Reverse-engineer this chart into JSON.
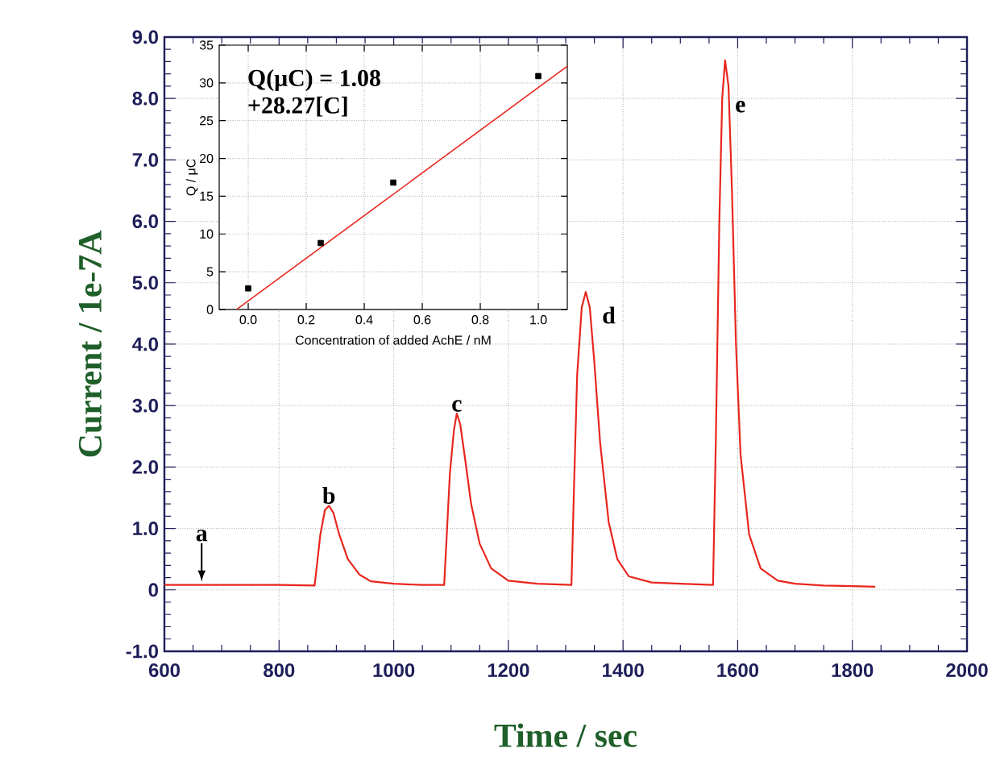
{
  "chart_data": [
    {
      "type": "line",
      "xlabel": "Time / sec",
      "ylabel": "Current / 1e-7A",
      "color": "#e8261e",
      "x": [
        600,
        700,
        800,
        862,
        866,
        872,
        880,
        887,
        895,
        905,
        920,
        940,
        960,
        1000,
        1050,
        1088,
        1092,
        1098,
        1105,
        1110,
        1116,
        1125,
        1135,
        1150,
        1170,
        1200,
        1250,
        1310,
        1314,
        1320,
        1328,
        1335,
        1342,
        1350,
        1360,
        1375,
        1390,
        1410,
        1450,
        1500,
        1557,
        1562,
        1568,
        1573,
        1578,
        1584,
        1590,
        1597,
        1605,
        1620,
        1640,
        1670,
        1700,
        1750,
        1800,
        1840
      ],
      "values": [
        0.08,
        0.08,
        0.08,
        0.07,
        0.4,
        0.9,
        1.3,
        1.37,
        1.25,
        0.9,
        0.5,
        0.25,
        0.14,
        0.1,
        0.08,
        0.08,
        0.8,
        1.9,
        2.6,
        2.87,
        2.7,
        2.1,
        1.4,
        0.75,
        0.35,
        0.15,
        0.1,
        0.08,
        1.5,
        3.5,
        4.6,
        4.85,
        4.6,
        3.7,
        2.4,
        1.1,
        0.5,
        0.22,
        0.12,
        0.1,
        0.08,
        2.5,
        6.0,
        8.0,
        8.62,
        8.2,
        6.5,
        4.0,
        2.2,
        0.9,
        0.35,
        0.15,
        0.1,
        0.07,
        0.06,
        0.05
      ],
      "xlim": [
        600,
        2000
      ],
      "ylim": [
        -1.0,
        9.0
      ],
      "xticks": [
        600,
        800,
        1000,
        1200,
        1400,
        1600,
        1800,
        2000
      ],
      "yticks": [
        {
          "value": -1.0,
          "label": "-1.0"
        },
        0,
        {
          "value": 1.0,
          "label": "1.0"
        },
        {
          "value": 2.0,
          "label": "2.0"
        },
        {
          "value": 3.0,
          "label": "3.0"
        },
        {
          "value": 4.0,
          "label": "4.0"
        },
        {
          "value": 5.0,
          "label": "5.0"
        },
        {
          "value": 6.0,
          "label": "6.0"
        },
        {
          "value": 7.0,
          "label": "7.0"
        },
        {
          "value": 8.0,
          "label": "8.0"
        },
        {
          "value": 9.0,
          "label": "9.0"
        }
      ],
      "grid": true,
      "annotations": [
        {
          "text": "a",
          "x": 665,
          "y": 0.08
        },
        {
          "text": "b",
          "x": 887,
          "y": 1.37
        },
        {
          "text": "c",
          "x": 1110,
          "y": 2.87
        },
        {
          "text": "d",
          "x": 1335,
          "y": 4.85
        },
        {
          "text": "e",
          "x": 1578,
          "y": 8.62
        }
      ]
    },
    {
      "type": "scatter",
      "xlabel": "Concentration of added AchE / nM",
      "ylabel": "Q / μC",
      "series": [
        {
          "type": "scatter",
          "marker": "square",
          "color": "#000000",
          "x": [
            0,
            0.25,
            0.5,
            1.0
          ],
          "values": [
            2.8,
            8.8,
            16.8,
            30.9
          ]
        },
        {
          "type": "line",
          "marker": "none",
          "color": "#e8261e",
          "x": [
            -0.04,
            1.1
          ],
          "values": [
            0,
            32.2
          ]
        }
      ],
      "xlim": [
        -0.1,
        1.1
      ],
      "ylim": [
        0,
        35
      ],
      "xticks": [
        {
          "value": 0,
          "label": "0.0"
        },
        0.2,
        0.4,
        0.6,
        0.8,
        {
          "value": 1.0,
          "label": "1.0"
        }
      ],
      "yticks": [
        0,
        5,
        10,
        15,
        20,
        25,
        30,
        35
      ],
      "grid": true,
      "annotations": [
        "Q(μC) = 1.08",
        "+28.27[C]"
      ]
    }
  ]
}
